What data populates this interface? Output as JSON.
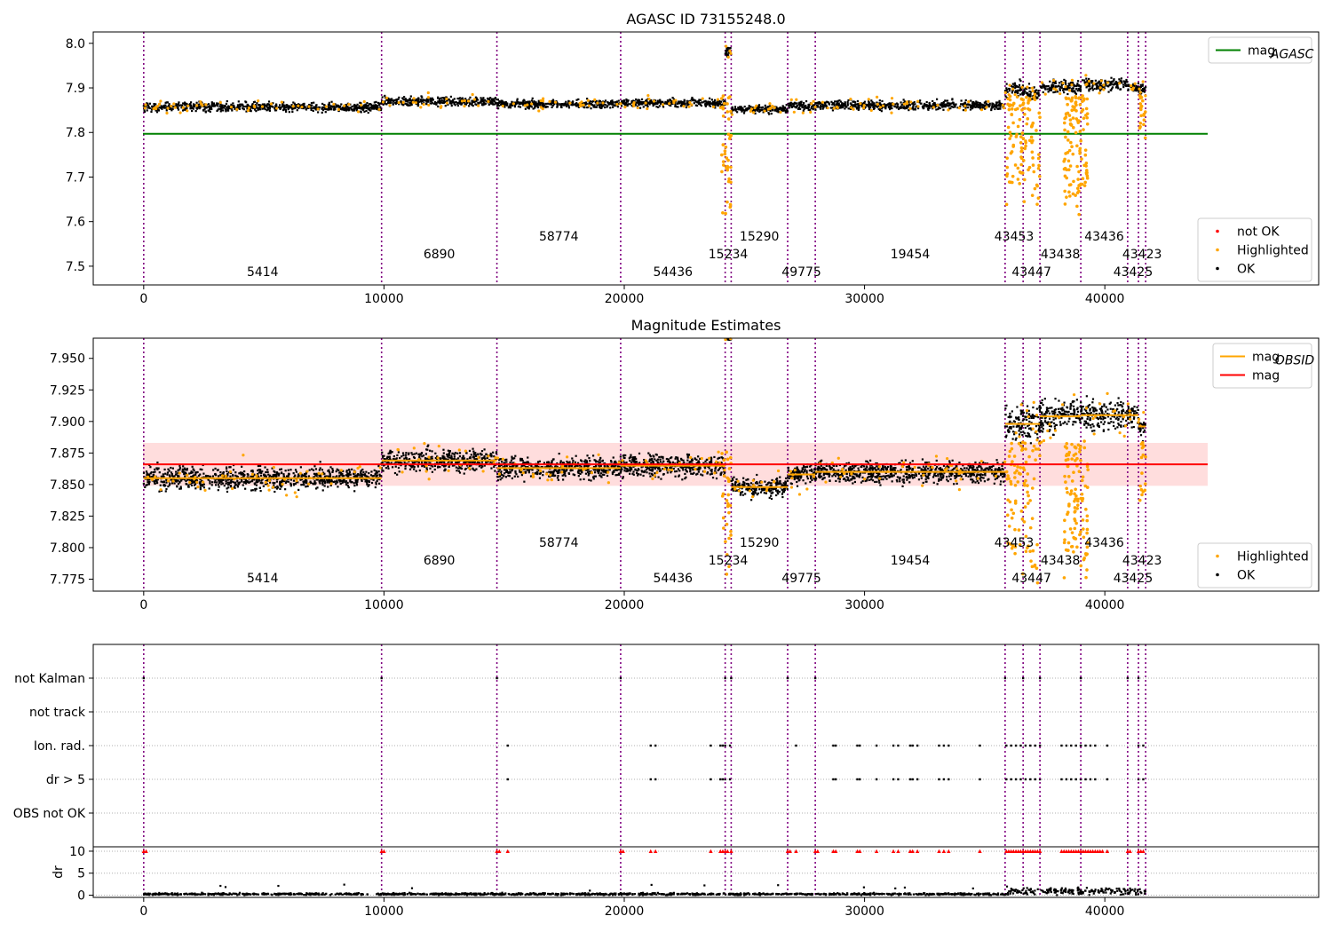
{
  "colors": {
    "ok": "#000000",
    "highlighted": "#ffa500",
    "not_ok": "#ff0000",
    "mag_agasc": "#008000",
    "mag_obsid": "#ffa500",
    "mag": "#ff0000",
    "band": "#ffdddd",
    "obs_line": "#800080",
    "grid": "#b0b0b0"
  },
  "chart_data": [
    {
      "type": "scatter",
      "title": "AGASC ID 73155248.0",
      "xlim": [
        -2100,
        48900
      ],
      "ylim": [
        7.458,
        8.0255
      ],
      "x_ticks": [
        0,
        10000,
        20000,
        30000,
        40000
      ],
      "y_ticks": [
        7.5,
        7.6,
        7.7,
        7.8,
        7.9,
        8.0
      ],
      "y_tick_labels": [
        "7.5",
        "7.6",
        "7.7",
        "7.8",
        "7.9",
        "8.0"
      ],
      "legends": [
        {
          "placement": "top-right",
          "entries": [
            {
              "label": "mag",
              "sub": "AGASC",
              "kind": "line",
              "color_key": "mag_agasc"
            }
          ]
        },
        {
          "placement": "lower-right",
          "entries": [
            {
              "label": "not OK",
              "kind": "dot",
              "color_key": "not_ok"
            },
            {
              "label": "Highlighted",
              "kind": "dot",
              "color_key": "highlighted"
            },
            {
              "label": "OK",
              "kind": "dot",
              "color_key": "ok"
            }
          ]
        }
      ],
      "mag_agasc": 7.797,
      "segments": [
        {
          "x0": 0,
          "x1": 9900,
          "y": 7.857,
          "noise": 0.007
        },
        {
          "x0": 9900,
          "x1": 14700,
          "y": 7.87,
          "noise": 0.007
        },
        {
          "x0": 14700,
          "x1": 19850,
          "y": 7.864,
          "noise": 0.006
        },
        {
          "x0": 19850,
          "x1": 24200,
          "y": 7.866,
          "noise": 0.006
        },
        {
          "x0": 24200,
          "x1": 24450,
          "y": 7.98,
          "noise": 0.008
        },
        {
          "x0": 24450,
          "x1": 26800,
          "y": 7.852,
          "noise": 0.006
        },
        {
          "x0": 26800,
          "x1": 27950,
          "y": 7.86,
          "noise": 0.007
        },
        {
          "x0": 27950,
          "x1": 35850,
          "y": 7.861,
          "noise": 0.007
        },
        {
          "x0": 35850,
          "x1": 36600,
          "y": 7.896,
          "noise": 0.012
        },
        {
          "x0": 36600,
          "x1": 37300,
          "y": 7.888,
          "noise": 0.01
        },
        {
          "x0": 37300,
          "x1": 39000,
          "y": 7.903,
          "noise": 0.01
        },
        {
          "x0": 39000,
          "x1": 40950,
          "y": 7.908,
          "noise": 0.009
        },
        {
          "x0": 40950,
          "x1": 41400,
          "y": 7.903,
          "noise": 0.008
        },
        {
          "x0": 41400,
          "x1": 41700,
          "y": 7.895,
          "noise": 0.008
        }
      ],
      "highlight_drops": [
        {
          "x0": 35900,
          "x1": 37300,
          "ymin": 7.62,
          "count": 110
        },
        {
          "x0": 38300,
          "x1": 39300,
          "ymin": 7.6,
          "count": 120
        },
        {
          "x0": 24050,
          "x1": 24450,
          "ymin": 7.6,
          "count": 40
        },
        {
          "x0": 41450,
          "x1": 41700,
          "ymin": 7.78,
          "count": 20
        }
      ]
    },
    {
      "type": "scatter",
      "title": "Magnitude Estimates",
      "xlim": [
        -2100,
        48900
      ],
      "ylim": [
        7.7655,
        7.966
      ],
      "x_ticks": [
        0,
        10000,
        20000,
        30000,
        40000
      ],
      "y_ticks": [
        7.775,
        7.8,
        7.825,
        7.85,
        7.875,
        7.9,
        7.925,
        7.95
      ],
      "y_tick_labels": [
        "7.775",
        "7.800",
        "7.825",
        "7.850",
        "7.875",
        "7.900",
        "7.925",
        "7.950"
      ],
      "legends": [
        {
          "placement": "top-right",
          "entries": [
            {
              "label": "mag",
              "sub": "OBSID",
              "kind": "line",
              "color_key": "mag_obsid"
            },
            {
              "label": "mag",
              "sub": "",
              "kind": "line",
              "color_key": "mag"
            }
          ]
        },
        {
          "placement": "lower-right",
          "entries": [
            {
              "label": "Highlighted",
              "kind": "dot",
              "color_key": "highlighted"
            },
            {
              "label": "OK",
              "kind": "dot",
              "color_key": "ok"
            }
          ]
        }
      ],
      "mag": 7.866,
      "mag_band": [
        7.849,
        7.883
      ],
      "segments": [
        {
          "x0": 0,
          "x1": 9900,
          "y": 7.855,
          "noise": 0.006
        },
        {
          "x0": 9900,
          "x1": 14700,
          "y": 7.869,
          "noise": 0.006
        },
        {
          "x0": 14700,
          "x1": 19850,
          "y": 7.863,
          "noise": 0.006
        },
        {
          "x0": 19850,
          "x1": 24200,
          "y": 7.865,
          "noise": 0.006
        },
        {
          "x0": 24200,
          "x1": 24450,
          "y": 7.966,
          "noise": 0.001
        },
        {
          "x0": 24450,
          "x1": 26800,
          "y": 7.848,
          "noise": 0.005
        },
        {
          "x0": 26800,
          "x1": 27950,
          "y": 7.858,
          "noise": 0.006
        },
        {
          "x0": 27950,
          "x1": 35850,
          "y": 7.86,
          "noise": 0.006
        },
        {
          "x0": 35850,
          "x1": 37300,
          "y": 7.898,
          "noise": 0.01
        },
        {
          "x0": 37300,
          "x1": 39000,
          "y": 7.904,
          "noise": 0.009
        },
        {
          "x0": 39000,
          "x1": 40950,
          "y": 7.905,
          "noise": 0.008
        },
        {
          "x0": 40950,
          "x1": 41400,
          "y": 7.905,
          "noise": 0.006
        },
        {
          "x0": 41400,
          "x1": 41700,
          "y": 7.896,
          "noise": 0.006
        }
      ],
      "highlight_drops": [
        {
          "x0": 35900,
          "x1": 37300,
          "ymin": 7.768,
          "count": 90
        },
        {
          "x0": 38300,
          "x1": 39300,
          "ymin": 7.768,
          "count": 110
        },
        {
          "x0": 24050,
          "x1": 24450,
          "ymin": 7.768,
          "count": 30
        },
        {
          "x0": 41450,
          "x1": 41700,
          "ymin": 7.83,
          "count": 15
        }
      ]
    },
    {
      "type": "scatter",
      "xlim": [
        -2100,
        48900
      ],
      "x_ticks": [
        0,
        10000,
        20000,
        30000,
        40000
      ],
      "flag_rows": [
        "not Kalman",
        "not track",
        "Ion. rad.",
        "dr > 5",
        "OBS not OK"
      ],
      "flag_x": {
        "not Kalman": [
          0,
          9900,
          14700,
          19850,
          24200,
          24450,
          26800,
          27950,
          35850,
          36600,
          37300,
          39000,
          40950,
          41400
        ],
        "not track": [],
        "Ion. rad.": [
          15150,
          21100,
          21300,
          23600,
          24000,
          24100,
          24200,
          24400,
          27150,
          28700,
          28800,
          29700,
          29800,
          30500,
          31200,
          31400,
          31900,
          32000,
          32200,
          33100,
          33300,
          33500,
          34800,
          35900,
          36100,
          36300,
          36500,
          36700,
          36900,
          37100,
          37300,
          38200,
          38400,
          38600,
          38800,
          39000,
          39200,
          39400,
          39600,
          40100,
          41400,
          41600
        ],
        "dr > 5": [
          15150,
          21100,
          21300,
          23600,
          24000,
          24100,
          24200,
          24400,
          28700,
          28800,
          29700,
          29800,
          30500,
          31200,
          31400,
          31900,
          32000,
          32200,
          33100,
          33300,
          33500,
          34800,
          35900,
          36100,
          36300,
          36500,
          36700,
          36900,
          37100,
          37300,
          38200,
          38400,
          38600,
          38800,
          39000,
          39200,
          39400,
          39600,
          40100,
          41400,
          41600
        ],
        "OBS not OK": []
      },
      "dr": {
        "ylabel": "dr",
        "ylim": [
          -0.5,
          11
        ],
        "y_ticks": [
          0,
          5,
          10
        ],
        "y_tick_labels": [
          "0",
          "5",
          "10"
        ],
        "capped_value": 10,
        "capped_x": [
          0,
          100,
          9900,
          10000,
          14700,
          14800,
          15150,
          19850,
          19950,
          21100,
          21300,
          23600,
          24000,
          24100,
          24200,
          24300,
          24450,
          26800,
          26900,
          27150,
          27950,
          28050,
          28700,
          28800,
          29700,
          29800,
          30500,
          31200,
          31400,
          31900,
          32000,
          32200,
          33100,
          33300,
          33500,
          34800,
          35900,
          36000,
          36100,
          36200,
          36300,
          36400,
          36500,
          36600,
          36700,
          36800,
          36900,
          37000,
          37100,
          37200,
          37300,
          38200,
          38300,
          38400,
          38500,
          38600,
          38700,
          38800,
          38900,
          39000,
          39100,
          39200,
          39300,
          39400,
          39500,
          39600,
          39700,
          39800,
          39900,
          40100,
          40950,
          41050,
          41400,
          41500,
          41600
        ]
      }
    }
  ],
  "observations": [
    {
      "id": "5414",
      "start": 0,
      "mid": 4950,
      "level": 0
    },
    {
      "id": "6890",
      "start": 9900,
      "mid": 12300,
      "level": 1
    },
    {
      "id": "58774",
      "start": 14700,
      "mid": 17275,
      "level": 2
    },
    {
      "id": "54436",
      "start": 19850,
      "mid": 22025,
      "level": 0
    },
    {
      "id": "15234",
      "start": 24200,
      "mid": 24325,
      "level": 1
    },
    {
      "id": "15290",
      "start": 24450,
      "mid": 25625,
      "level": 2
    },
    {
      "id": "49775",
      "start": 26800,
      "mid": 27375,
      "level": 0
    },
    {
      "id": "19454",
      "start": 27950,
      "mid": 31900,
      "level": 1
    },
    {
      "id": "43453",
      "start": 35850,
      "mid": 36225,
      "level": 2
    },
    {
      "id": "43447",
      "start": 36600,
      "mid": 36950,
      "level": 0
    },
    {
      "id": "43438",
      "start": 37300,
      "mid": 38150,
      "level": 1
    },
    {
      "id": "43436",
      "start": 39000,
      "mid": 39975,
      "level": 2
    },
    {
      "id": "43425",
      "start": 40950,
      "mid": 41175,
      "level": 0
    },
    {
      "id": "43423",
      "start": 41400,
      "mid": 41550,
      "level": 1
    }
  ],
  "obs_end": 41700
}
